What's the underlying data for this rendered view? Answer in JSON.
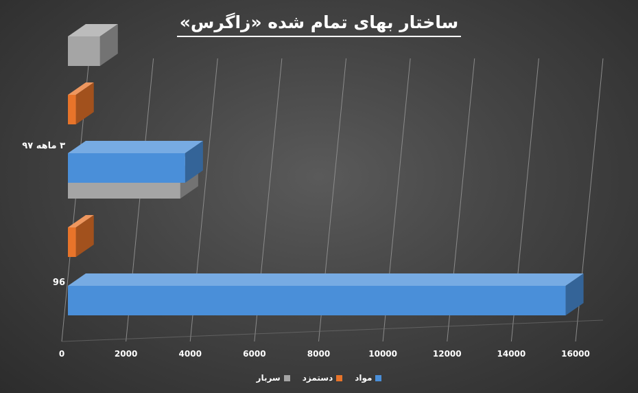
{
  "chart_data": {
    "type": "bar",
    "orientation": "horizontal",
    "three_d": true,
    "title": "ساختار بهای تمام شده «زاگرس»",
    "categories": [
      "96",
      "۳ ماهه ۹۷"
    ],
    "series": [
      {
        "name": "مواد",
        "color": "#4a8fd9",
        "values": [
          15500,
          3650
        ]
      },
      {
        "name": "دستمزد",
        "color": "#e8742a",
        "values": [
          250,
          250
        ]
      },
      {
        "name": "سربار",
        "color": "#a5a5a5",
        "values": [
          3500,
          1000
        ]
      }
    ],
    "xlim": [
      0,
      16000
    ],
    "xticks": [
      "0",
      "2000",
      "4000",
      "6000",
      "8000",
      "10000",
      "12000",
      "14000",
      "16000"
    ],
    "grid": true,
    "legend_position": "bottom"
  }
}
